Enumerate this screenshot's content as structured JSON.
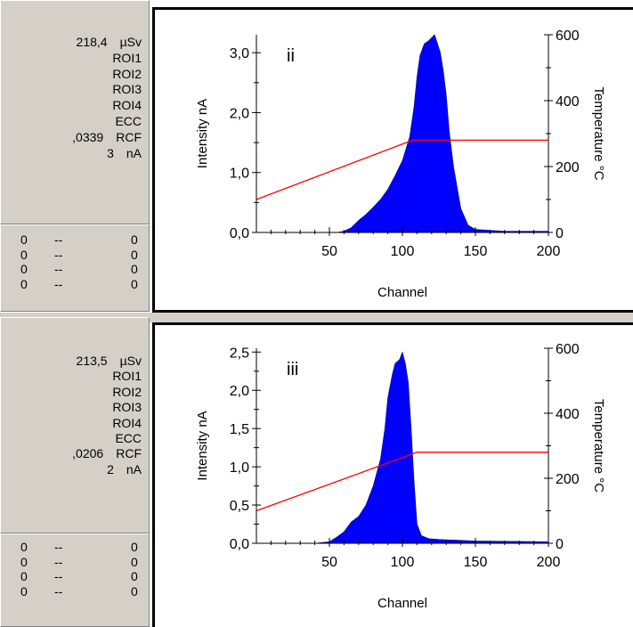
{
  "panels": [
    {
      "dose_value": "218,4",
      "dose_unit": "µSv",
      "roi_labels": [
        "ROI1",
        "ROI2",
        "ROI3",
        "ROI4"
      ],
      "ecc_label": "ECC",
      "rcf_value": ",0339",
      "rcf_label": "RCF",
      "current_value": "3",
      "current_unit": "nA",
      "bottom_rows": [
        {
          "left": "0",
          "mid": "--",
          "right": "0"
        },
        {
          "left": "0",
          "mid": "--",
          "right": "0"
        },
        {
          "left": "0",
          "mid": "--",
          "right": "0"
        },
        {
          "left": "0",
          "mid": "--",
          "right": "0"
        }
      ]
    },
    {
      "dose_value": "213,5",
      "dose_unit": "µSv",
      "roi_labels": [
        "ROI1",
        "ROI2",
        "ROI3",
        "ROI4"
      ],
      "ecc_label": "ECC",
      "rcf_value": ",0206",
      "rcf_label": "RCF",
      "current_value": "2",
      "current_unit": "nA",
      "bottom_rows": [
        {
          "left": "0",
          "mid": "--",
          "right": "0"
        },
        {
          "left": "0",
          "mid": "--",
          "right": "0"
        },
        {
          "left": "0",
          "mid": "--",
          "right": "0"
        },
        {
          "left": "0",
          "mid": "--",
          "right": "0"
        }
      ]
    }
  ],
  "chart_data": [
    {
      "type": "area",
      "panel_label": "ii",
      "xlabel": "Channel",
      "ylabel": "Intensity nA",
      "y2label": "Temperature °C",
      "xlim": [
        0,
        200
      ],
      "ylim": [
        0,
        3.3
      ],
      "y2lim": [
        0,
        600
      ],
      "x_ticks": [
        "50",
        "100",
        "150",
        "200"
      ],
      "y_ticks": [
        "0,0",
        "1,0",
        "2,0",
        "3,0"
      ],
      "y_tick_values": [
        0,
        1,
        2,
        3
      ],
      "y2_ticks": [
        "0",
        "200",
        "400",
        "600"
      ],
      "y2_tick_values": [
        0,
        200,
        400,
        600
      ],
      "fill_color": "#0000ff",
      "line_color": "#ff0000",
      "series": [
        {
          "kind": "area",
          "x": [
            0,
            20,
            40,
            55,
            60,
            65,
            70,
            75,
            80,
            85,
            90,
            95,
            100,
            105,
            108,
            110,
            112,
            115,
            118,
            120,
            122,
            124,
            126,
            128,
            130,
            132,
            135,
            140,
            145,
            150,
            170,
            200
          ],
          "y": [
            0,
            0,
            0,
            0,
            0.02,
            0.08,
            0.2,
            0.3,
            0.42,
            0.55,
            0.72,
            0.95,
            1.2,
            1.6,
            2.1,
            2.6,
            2.95,
            3.15,
            3.2,
            3.25,
            3.3,
            3.15,
            3.0,
            2.7,
            2.3,
            1.7,
            1.1,
            0.4,
            0.12,
            0.05,
            0.02,
            0.02
          ]
        },
        {
          "kind": "line",
          "axis": "y2",
          "x": [
            0,
            107,
            200
          ],
          "y": [
            100,
            280,
            280
          ]
        }
      ]
    },
    {
      "type": "area",
      "panel_label": "iii",
      "xlabel": "Channel",
      "ylabel": "Intensity nA",
      "y2label": "Temperature °C",
      "xlim": [
        0,
        200
      ],
      "ylim": [
        0,
        2.55
      ],
      "y2lim": [
        0,
        600
      ],
      "x_ticks": [
        "50",
        "100",
        "150",
        "200"
      ],
      "y_ticks": [
        "0,0",
        "0,5",
        "1,0",
        "1,5",
        "2,0",
        "2,5"
      ],
      "y_tick_values": [
        0,
        0.5,
        1.0,
        1.5,
        2.0,
        2.5
      ],
      "y2_ticks": [
        "0",
        "200",
        "400",
        "600"
      ],
      "y2_tick_values": [
        0,
        200,
        400,
        600
      ],
      "fill_color": "#0000ff",
      "line_color": "#ff0000",
      "series": [
        {
          "kind": "area",
          "x": [
            0,
            20,
            40,
            50,
            55,
            60,
            65,
            70,
            75,
            80,
            85,
            88,
            90,
            93,
            95,
            98,
            100,
            102,
            104,
            106,
            108,
            110,
            113,
            118,
            125,
            150,
            200
          ],
          "y": [
            0,
            0,
            0,
            0.02,
            0.08,
            0.15,
            0.28,
            0.35,
            0.5,
            0.75,
            1.1,
            1.5,
            1.9,
            2.2,
            2.35,
            2.4,
            2.5,
            2.35,
            2.1,
            1.5,
            0.8,
            0.25,
            0.1,
            0.06,
            0.05,
            0.03,
            0.02
          ]
        },
        {
          "kind": "line",
          "axis": "y2",
          "x": [
            0,
            110,
            200
          ],
          "y": [
            100,
            280,
            280
          ]
        }
      ]
    }
  ]
}
